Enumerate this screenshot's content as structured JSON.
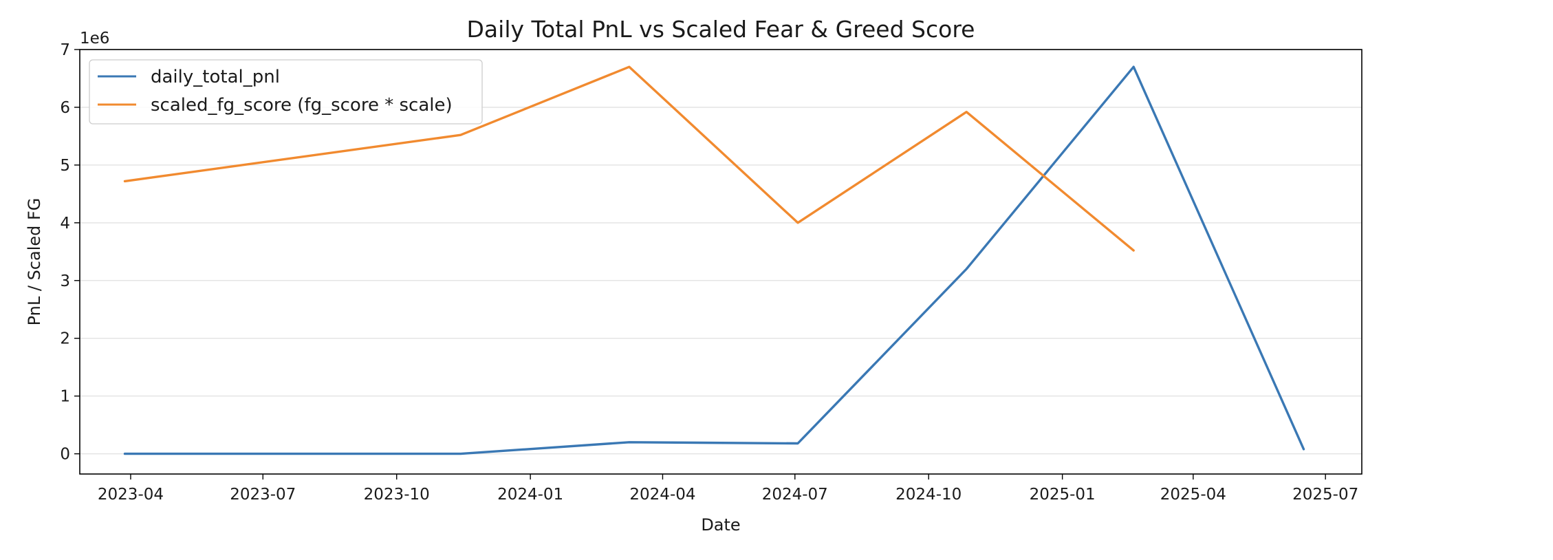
{
  "chart_data": {
    "type": "line",
    "title": "Daily Total PnL vs Scaled Fear & Greed Score",
    "xlabel": "Date",
    "ylabel": "PnL / Scaled FG",
    "y_offset_text": "1e6",
    "x_is_date": true,
    "xlim": [
      "2023-02-25",
      "2025-07-26"
    ],
    "ylim": [
      -0.35,
      7.0
    ],
    "x_ticks": [
      "2023-04-01",
      "2023-07-01",
      "2023-10-01",
      "2024-01-01",
      "2024-04-01",
      "2024-07-01",
      "2024-10-01",
      "2025-01-01",
      "2025-04-01",
      "2025-07-01"
    ],
    "x_tick_labels": [
      "2023-04",
      "2023-07",
      "2023-10",
      "2024-01",
      "2024-04",
      "2024-07",
      "2024-10",
      "2025-01",
      "2025-04",
      "2025-07"
    ],
    "y_ticks": [
      0,
      1,
      2,
      3,
      4,
      5,
      6,
      7
    ],
    "y_tick_labels": [
      "0",
      "1",
      "2",
      "3",
      "4",
      "5",
      "6",
      "7"
    ],
    "grid": "horizontal",
    "legend_position": "upper-left",
    "series": [
      {
        "name": "daily_total_pnl",
        "color": "#3a78b4",
        "x": [
          "2023-03-28",
          "2023-11-14",
          "2024-03-09",
          "2024-07-03",
          "2024-10-27",
          "2025-02-19",
          "2025-06-16"
        ],
        "y": [
          0.0,
          0.0,
          0.2,
          0.18,
          3.2,
          6.7,
          0.08
        ]
      },
      {
        "name": "scaled_fg_score (fg_score * scale)",
        "color": "#f18a2f",
        "x": [
          "2023-03-28",
          "2023-11-14",
          "2024-03-09",
          "2024-07-03",
          "2024-10-27",
          "2025-02-19"
        ],
        "y": [
          4.72,
          5.52,
          6.7,
          4.0,
          5.92,
          3.52
        ]
      }
    ]
  }
}
